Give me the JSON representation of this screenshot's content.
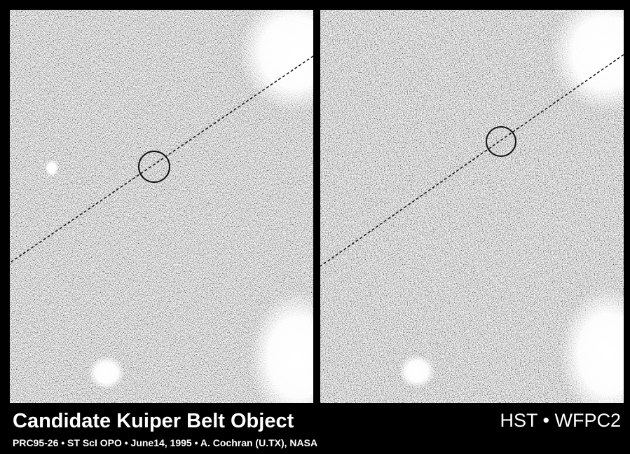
{
  "image": {
    "title": "Candidate Kuiper Belt Object",
    "instrument": "HST • WFPC2",
    "credit": "PRC95-26 • ST ScI OPO • June14, 1995 • A. Cochran (U.TX), NASA"
  }
}
